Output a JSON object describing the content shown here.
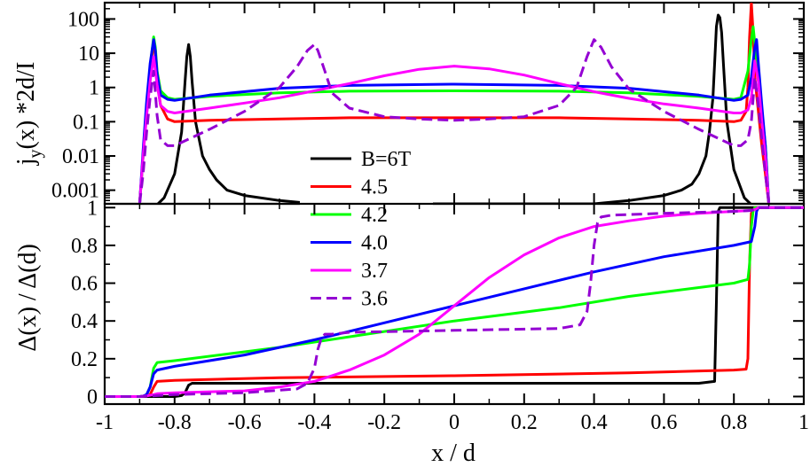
{
  "chart_data": [
    {
      "type": "line",
      "panel": "top",
      "ylabel_main": "j",
      "ylabel_sub": "y",
      "ylabel_rest": "(x) *2d/I",
      "y_scale": "log",
      "xlim": [
        -1,
        1
      ],
      "ylim": [
        0.0004,
        300
      ],
      "y_ticks": [
        {
          "value": 0.001,
          "label": "0.001"
        },
        {
          "value": 0.01,
          "label": "0.01"
        },
        {
          "value": 0.1,
          "label": "0.1"
        },
        {
          "value": 1,
          "label": "1"
        },
        {
          "value": 10,
          "label": "10"
        },
        {
          "value": 100,
          "label": "100"
        }
      ],
      "series": [
        {
          "name": "B=6T",
          "color": "#000000",
          "dash": false,
          "x": [
            -0.86,
            -0.83,
            -0.8,
            -0.78,
            -0.77,
            -0.765,
            -0.76,
            -0.755,
            -0.75,
            -0.74,
            -0.72,
            -0.7,
            -0.68,
            -0.65,
            -0.6,
            -0.5,
            -0.4,
            -0.38,
            -0.3,
            0.3,
            0.38,
            0.4,
            0.5,
            0.6,
            0.65,
            0.68,
            0.7,
            0.72,
            0.73,
            0.74,
            0.745,
            0.75,
            0.755,
            0.76,
            0.765,
            0.77,
            0.78,
            0.8,
            0.83,
            0.86
          ],
          "y": [
            0.0003,
            0.0006,
            0.003,
            0.05,
            1.5,
            8,
            18,
            8,
            1.5,
            0.1,
            0.01,
            0.004,
            0.002,
            0.001,
            0.0007,
            0.0005,
            0.0004,
            0.0004,
            0.0004,
            0.0004,
            0.0004,
            0.0004,
            0.0005,
            0.0007,
            0.001,
            0.0015,
            0.003,
            0.01,
            0.05,
            0.5,
            5,
            60,
            130,
            110,
            40,
            5,
            0.1,
            0.004,
            0.0006,
            0.0003
          ]
        },
        {
          "name": "4.5",
          "color": "#ff0000",
          "dash": false,
          "x": [
            -0.9,
            -0.89,
            -0.88,
            -0.87,
            -0.86,
            -0.855,
            -0.85,
            -0.84,
            -0.82,
            -0.8,
            -0.7,
            -0.5,
            -0.3,
            0,
            0.3,
            0.5,
            0.7,
            0.8,
            0.82,
            0.835,
            0.84,
            0.845,
            0.85,
            0.855,
            0.86,
            0.87,
            0.88,
            0.89,
            0.9
          ],
          "y": [
            0.0004,
            0.01,
            0.2,
            2,
            20,
            12,
            1.5,
            0.3,
            0.12,
            0.1,
            0.11,
            0.12,
            0.13,
            0.13,
            0.13,
            0.12,
            0.11,
            0.1,
            0.11,
            0.2,
            1,
            30,
            300,
            40,
            2,
            0.2,
            0.02,
            0.003,
            0.0004
          ]
        },
        {
          "name": "4.2",
          "color": "#00ff00",
          "dash": false,
          "x": [
            -0.9,
            -0.89,
            -0.88,
            -0.87,
            -0.86,
            -0.855,
            -0.85,
            -0.84,
            -0.82,
            -0.8,
            -0.7,
            -0.5,
            -0.3,
            0,
            0.3,
            0.5,
            0.7,
            0.8,
            0.82,
            0.84,
            0.85,
            0.855,
            0.86,
            0.87,
            0.88,
            0.89,
            0.9
          ],
          "y": [
            0.0004,
            0.01,
            0.3,
            4,
            30,
            15,
            3,
            0.8,
            0.5,
            0.45,
            0.55,
            0.7,
            0.78,
            0.8,
            0.78,
            0.7,
            0.55,
            0.45,
            0.5,
            3,
            25,
            60,
            20,
            2,
            0.2,
            0.02,
            0.0004
          ]
        },
        {
          "name": "4.0",
          "color": "#0000ff",
          "dash": false,
          "x": [
            -0.9,
            -0.89,
            -0.88,
            -0.87,
            -0.86,
            -0.855,
            -0.85,
            -0.84,
            -0.82,
            -0.8,
            -0.7,
            -0.5,
            -0.3,
            0,
            0.3,
            0.5,
            0.7,
            0.8,
            0.82,
            0.84,
            0.85,
            0.86,
            0.865,
            0.87,
            0.88,
            0.89,
            0.9
          ],
          "y": [
            0.0004,
            0.015,
            0.4,
            5,
            25,
            12,
            2.5,
            0.6,
            0.45,
            0.42,
            0.6,
            0.95,
            1.15,
            1.25,
            1.15,
            0.95,
            0.6,
            0.42,
            0.45,
            0.6,
            2,
            15,
            25,
            5,
            0.3,
            0.02,
            0.0004
          ]
        },
        {
          "name": "3.7",
          "color": "#ff00ff",
          "dash": false,
          "x": [
            -0.9,
            -0.89,
            -0.88,
            -0.87,
            -0.86,
            -0.85,
            -0.84,
            -0.82,
            -0.8,
            -0.7,
            -0.6,
            -0.5,
            -0.4,
            -0.3,
            -0.2,
            -0.1,
            0,
            0.1,
            0.2,
            0.3,
            0.4,
            0.5,
            0.6,
            0.7,
            0.8,
            0.82,
            0.84,
            0.85,
            0.86,
            0.87,
            0.88,
            0.89,
            0.9
          ],
          "y": [
            0.0004,
            0.01,
            0.15,
            1.5,
            8,
            1.2,
            0.3,
            0.2,
            0.18,
            0.25,
            0.35,
            0.5,
            0.8,
            1.3,
            2.2,
            3.4,
            4.2,
            3.5,
            2.3,
            1.3,
            0.75,
            0.48,
            0.33,
            0.25,
            0.18,
            0.18,
            0.22,
            0.5,
            6,
            1.5,
            0.1,
            0.01,
            0.0004
          ]
        },
        {
          "name": "3.6",
          "color": "#9400d3",
          "dash": true,
          "x": [
            -0.9,
            -0.89,
            -0.88,
            -0.87,
            -0.86,
            -0.85,
            -0.84,
            -0.82,
            -0.8,
            -0.7,
            -0.6,
            -0.5,
            -0.45,
            -0.42,
            -0.4,
            -0.39,
            -0.37,
            -0.35,
            -0.3,
            -0.2,
            -0.1,
            0,
            0.1,
            0.2,
            0.3,
            0.35,
            0.38,
            0.4,
            0.42,
            0.45,
            0.5,
            0.6,
            0.7,
            0.8,
            0.82,
            0.84,
            0.85,
            0.86,
            0.87,
            0.88,
            0.89,
            0.9
          ],
          "y": [
            0.0004,
            0.003,
            0.05,
            0.5,
            3,
            0.15,
            0.03,
            0.02,
            0.02,
            0.06,
            0.2,
            1,
            4,
            12,
            18,
            12,
            3,
            0.7,
            0.25,
            0.14,
            0.12,
            0.11,
            0.12,
            0.14,
            0.3,
            1,
            8,
            25,
            15,
            4,
            0.9,
            0.2,
            0.06,
            0.02,
            0.02,
            0.03,
            0.1,
            2,
            0.3,
            0.03,
            0.003,
            0.0004
          ]
        }
      ]
    },
    {
      "type": "line",
      "panel": "bottom",
      "ylabel": "Δ(x) / Δ(d)",
      "xlabel": "x / d",
      "xlim": [
        -1,
        1
      ],
      "ylim": [
        -0.04,
        1.02
      ],
      "x_ticks": [
        {
          "value": -1,
          "label": "-1"
        },
        {
          "value": -0.8,
          "label": "-0.8"
        },
        {
          "value": -0.6,
          "label": "-0.6"
        },
        {
          "value": -0.4,
          "label": "-0.4"
        },
        {
          "value": -0.2,
          "label": "-0.2"
        },
        {
          "value": 0,
          "label": "0"
        },
        {
          "value": 0.2,
          "label": "0.2"
        },
        {
          "value": 0.4,
          "label": "0.4"
        },
        {
          "value": 0.6,
          "label": "0.6"
        },
        {
          "value": 0.8,
          "label": "0.8"
        },
        {
          "value": 1,
          "label": "1"
        }
      ],
      "y_ticks": [
        {
          "value": 0,
          "label": "0"
        },
        {
          "value": 0.2,
          "label": "0.2"
        },
        {
          "value": 0.4,
          "label": "0.4"
        },
        {
          "value": 0.6,
          "label": "0.6"
        },
        {
          "value": 0.8,
          "label": "0.8"
        },
        {
          "value": 1,
          "label": "1"
        }
      ],
      "series": [
        {
          "name": "B=6T",
          "color": "#000000",
          "dash": false,
          "x": [
            -1,
            -0.8,
            -0.78,
            -0.77,
            -0.76,
            -0.75,
            -0.7,
            0,
            0.7,
            0.745,
            0.75,
            0.755,
            0.76,
            0.8,
            1
          ],
          "y": [
            0,
            0,
            0.005,
            0.02,
            0.06,
            0.07,
            0.07,
            0.07,
            0.07,
            0.08,
            0.5,
            0.98,
            1,
            1,
            1
          ]
        },
        {
          "name": "4.5",
          "color": "#ff0000",
          "dash": false,
          "x": [
            -1,
            -0.9,
            -0.88,
            -0.87,
            -0.86,
            -0.85,
            -0.8,
            -0.5,
            0,
            0.5,
            0.8,
            0.835,
            0.84,
            0.845,
            0.85,
            0.86,
            1
          ],
          "y": [
            0,
            0,
            0.002,
            0.01,
            0.05,
            0.08,
            0.085,
            0.1,
            0.11,
            0.125,
            0.14,
            0.145,
            0.2,
            0.7,
            0.97,
            1,
            1
          ]
        },
        {
          "name": "4.2",
          "color": "#00ff00",
          "dash": false,
          "x": [
            -1,
            -0.9,
            -0.89,
            -0.88,
            -0.87,
            -0.86,
            -0.85,
            -0.8,
            -0.5,
            0,
            0.3,
            0.5,
            0.8,
            0.84,
            0.845,
            0.85,
            0.855,
            0.86,
            1
          ],
          "y": [
            0,
            0,
            0.002,
            0.01,
            0.05,
            0.15,
            0.18,
            0.19,
            0.26,
            0.4,
            0.47,
            0.53,
            0.6,
            0.62,
            0.7,
            0.9,
            0.98,
            1,
            1
          ]
        },
        {
          "name": "4.0",
          "color": "#0000ff",
          "dash": false,
          "x": [
            -1,
            -0.9,
            -0.89,
            -0.88,
            -0.87,
            -0.86,
            -0.85,
            -0.8,
            -0.6,
            -0.4,
            -0.2,
            0,
            0.2,
            0.4,
            0.6,
            0.8,
            0.85,
            0.86,
            0.865,
            0.87,
            1
          ],
          "y": [
            0,
            0,
            0.002,
            0.01,
            0.05,
            0.12,
            0.14,
            0.16,
            0.22,
            0.3,
            0.39,
            0.48,
            0.57,
            0.66,
            0.74,
            0.8,
            0.82,
            0.9,
            0.98,
            1,
            1
          ]
        },
        {
          "name": "3.7",
          "color": "#ff00ff",
          "dash": false,
          "x": [
            -1,
            -0.9,
            -0.88,
            -0.86,
            -0.85,
            -0.8,
            -0.6,
            -0.5,
            -0.4,
            -0.3,
            -0.2,
            -0.1,
            0,
            0.1,
            0.2,
            0.3,
            0.4,
            0.5,
            0.6,
            0.7,
            0.8,
            0.85,
            0.86,
            0.87,
            1
          ],
          "y": [
            0,
            0,
            0.003,
            0.01,
            0.015,
            0.02,
            0.03,
            0.05,
            0.08,
            0.14,
            0.22,
            0.33,
            0.48,
            0.63,
            0.75,
            0.84,
            0.9,
            0.93,
            0.955,
            0.97,
            0.98,
            0.985,
            0.99,
            1,
            1
          ]
        },
        {
          "name": "3.6",
          "color": "#9400d3",
          "dash": true,
          "x": [
            -1,
            -0.9,
            -0.87,
            -0.85,
            -0.8,
            -0.6,
            -0.45,
            -0.42,
            -0.4,
            -0.39,
            -0.38,
            -0.37,
            -0.35,
            -0.3,
            0,
            0.3,
            0.36,
            0.38,
            0.39,
            0.4,
            0.41,
            0.42,
            0.45,
            0.6,
            0.8,
            0.85,
            0.86,
            0.87,
            1
          ],
          "y": [
            0,
            0,
            0.002,
            0.005,
            0.01,
            0.02,
            0.04,
            0.07,
            0.15,
            0.25,
            0.31,
            0.33,
            0.33,
            0.34,
            0.35,
            0.36,
            0.38,
            0.45,
            0.6,
            0.8,
            0.92,
            0.95,
            0.96,
            0.97,
            0.98,
            0.985,
            0.99,
            1,
            1
          ]
        }
      ]
    }
  ]
}
